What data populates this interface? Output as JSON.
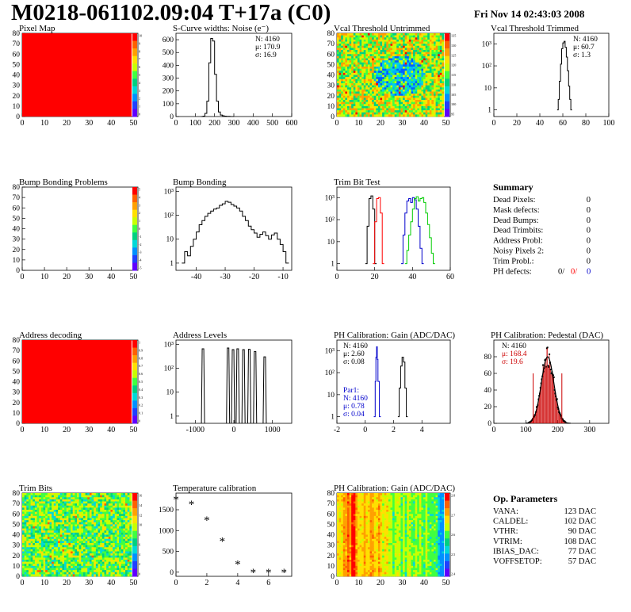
{
  "header": {
    "title": "M0218-061102.09:04 T+17a (C0)",
    "timestamp": "Fri Nov 14 02:43:03 2008"
  },
  "colors": {
    "red": "#ff0000",
    "blue": "#0000cc",
    "green": "#00cc00"
  },
  "chart_data": [
    {
      "id": "pixel-map",
      "type": "heatmap",
      "title": "Pixel Map",
      "xlim": [
        0,
        52
      ],
      "ylim": [
        0,
        80
      ],
      "xticks": [
        0,
        10,
        20,
        30,
        40,
        50
      ],
      "yticks": [
        0,
        10,
        20,
        30,
        40,
        50,
        60,
        70,
        80
      ],
      "palette_ticks": [
        "10",
        "9",
        "8",
        "7",
        "6",
        "5",
        "4",
        "3",
        "2",
        "1",
        "0"
      ],
      "fill": "uniform"
    },
    {
      "id": "scurve",
      "type": "line",
      "title": "S-Curve widths: Noise (e⁻)",
      "xlim": [
        0,
        600
      ],
      "ylim": [
        0,
        650
      ],
      "xticks": [
        0,
        100,
        200,
        300,
        400,
        500,
        600
      ],
      "yticks": [
        0,
        100,
        200,
        300,
        400,
        500,
        600
      ],
      "stats": [
        "N: 4160",
        "μ: 170.9",
        "σ: 16.9"
      ],
      "series": [
        {
          "x": [
            130,
            140,
            150,
            160,
            170,
            180,
            190,
            200,
            210,
            220,
            230,
            240,
            250,
            260,
            270,
            280,
            290
          ],
          "y": [
            0,
            3,
            25,
            120,
            420,
            610,
            590,
            330,
            120,
            35,
            12,
            6,
            3,
            1,
            1,
            0,
            0
          ]
        }
      ]
    },
    {
      "id": "vcal-untrimmed",
      "type": "heatmap",
      "title": "Vcal Threshold Untrimmed",
      "xlim": [
        0,
        52
      ],
      "ylim": [
        0,
        80
      ],
      "xticks": [
        0,
        10,
        20,
        30,
        40,
        50
      ],
      "yticks": [
        0,
        10,
        20,
        30,
        40,
        50,
        60,
        70,
        80
      ],
      "palette_ticks": [
        "135",
        "130",
        "125",
        "120",
        "115",
        "110",
        "105",
        "100",
        "95"
      ],
      "fill": "noisy-yellow"
    },
    {
      "id": "vcal-trimmed",
      "type": "line",
      "title": "Vcal Threshold Trimmed",
      "xlim": [
        0,
        100
      ],
      "log": true,
      "ylim": [
        0.5,
        3000
      ],
      "xticks": [
        0,
        20,
        40,
        60,
        80,
        100
      ],
      "yticks": [
        "1",
        "10",
        "10²",
        "10³"
      ],
      "stats": [
        "N: 4160",
        "μ: 60.7",
        "σ:  1.3"
      ],
      "series": [
        {
          "x": [
            55,
            56,
            57,
            58,
            59,
            60,
            61,
            62,
            63,
            64,
            65,
            66,
            67
          ],
          "y": [
            1,
            3,
            20,
            120,
            600,
            1100,
            1300,
            700,
            250,
            60,
            12,
            3,
            1
          ]
        }
      ]
    },
    {
      "id": "bump-bonding-problems",
      "type": "heatmap",
      "title": "Bump Bonding Problems",
      "xlim": [
        0,
        52
      ],
      "ylim": [
        0,
        80
      ],
      "xticks": [
        0,
        10,
        20,
        30,
        40,
        50
      ],
      "yticks": [
        0,
        10,
        20,
        30,
        40,
        50,
        60,
        70,
        80
      ],
      "palette_ticks": [
        "5",
        "4",
        "3",
        "2",
        "1",
        "0",
        "-1",
        "-2",
        "-3",
        "-4",
        "-5"
      ],
      "fill": "empty"
    },
    {
      "id": "bump-bonding",
      "type": "line",
      "title": "Bump Bonding",
      "xlim": [
        -47,
        -7
      ],
      "log": true,
      "ylim": [
        0.5,
        1500
      ],
      "xticks": [
        -40,
        -30,
        -20,
        -10
      ],
      "yticks": [
        "1",
        "10",
        "10²",
        "10³"
      ],
      "series": [
        {
          "x": [
            -45,
            -44,
            -43,
            -42,
            -41,
            -40,
            -39,
            -38,
            -37,
            -36,
            -35,
            -34,
            -33,
            -32,
            -31,
            -30,
            -29,
            -28,
            -27,
            -26,
            -25,
            -24,
            -23,
            -22,
            -21,
            -20,
            -19,
            -18,
            -17,
            -16,
            -15,
            -14,
            -13,
            -12,
            -11,
            -10,
            -9
          ],
          "y": [
            1,
            3,
            2,
            5,
            10,
            20,
            40,
            60,
            90,
            120,
            150,
            180,
            200,
            260,
            300,
            380,
            350,
            280,
            240,
            200,
            150,
            90,
            60,
            35,
            25,
            18,
            12,
            16,
            20,
            14,
            10,
            15,
            18,
            10,
            6,
            3,
            1
          ]
        }
      ]
    },
    {
      "id": "trim-bit-test",
      "type": "line",
      "title": "Trim Bit Test",
      "xlim": [
        0,
        60
      ],
      "log": true,
      "ylim": [
        0.5,
        3000
      ],
      "xticks": [
        0,
        20,
        40,
        60
      ],
      "yticks": [
        "1",
        "10",
        "10²",
        "10³"
      ],
      "series": [
        {
          "color": "#000000",
          "x": [
            15,
            16,
            17,
            18,
            19,
            20
          ],
          "y": [
            1,
            50,
            900,
            1200,
            300,
            1
          ]
        },
        {
          "color": "#ff0000",
          "x": [
            19,
            20,
            21,
            22,
            23,
            24
          ],
          "y": [
            1,
            80,
            900,
            1000,
            200,
            1
          ]
        },
        {
          "color": "#0000cc",
          "x": [
            34,
            35,
            36,
            37,
            38,
            39,
            40,
            41,
            42,
            43,
            44,
            45
          ],
          "y": [
            1,
            20,
            200,
            700,
            900,
            600,
            1000,
            800,
            300,
            50,
            5,
            1
          ]
        },
        {
          "color": "#00cc00",
          "x": [
            36,
            37,
            38,
            39,
            40,
            41,
            42,
            43,
            44,
            45,
            46,
            47,
            48,
            49,
            50,
            51
          ],
          "y": [
            1,
            4,
            20,
            80,
            300,
            900,
            1100,
            700,
            900,
            1000,
            600,
            200,
            60,
            15,
            3,
            1
          ]
        }
      ]
    },
    {
      "id": "address-decoding",
      "type": "heatmap",
      "title": "Address decoding",
      "xlim": [
        0,
        52
      ],
      "ylim": [
        0,
        80
      ],
      "xticks": [
        0,
        10,
        20,
        30,
        40,
        50
      ],
      "yticks": [
        0,
        10,
        20,
        30,
        40,
        50,
        60,
        70,
        80
      ],
      "palette_ticks": [
        "1",
        "0.9",
        "0.8",
        "0.7",
        "0.6",
        "0.5",
        "0.4",
        "0.3",
        "0.2",
        "0.1",
        "0"
      ],
      "fill": "uniform"
    },
    {
      "id": "address-levels",
      "type": "line",
      "title": "Address Levels",
      "xlim": [
        -1500,
        1500
      ],
      "log": true,
      "ylim": [
        0.5,
        1500
      ],
      "xticks": [
        -1000,
        0,
        1000
      ],
      "yticks": [
        "1",
        "10",
        "10²",
        "10³"
      ],
      "peaks": [
        -800,
        -150,
        -20,
        100,
        250,
        400,
        550,
        800
      ],
      "peak_heights": [
        650,
        700,
        600,
        650,
        600,
        620,
        500,
        300
      ]
    },
    {
      "id": "ph-gain",
      "type": "line",
      "title": "PH Calibration: Gain (ADC/DAC)",
      "xlim": [
        -2,
        6
      ],
      "log": true,
      "ylim": [
        0.5,
        3000
      ],
      "xticks": [
        -2,
        0,
        2,
        4
      ],
      "yticks": [
        "1",
        "10",
        "10²",
        "10³"
      ],
      "stats": [
        "N: 4160",
        "μ: 2.60",
        "σ: 0.08"
      ],
      "stats2": [
        "Par1:",
        "N: 4160",
        "μ: 0.78",
        "σ: 0.04"
      ],
      "series": [
        {
          "color": "#0000cc",
          "x": [
            0.6,
            0.7,
            0.75,
            0.8,
            0.85,
            0.9,
            1.0
          ],
          "y": [
            1,
            40,
            500,
            1500,
            400,
            40,
            1
          ]
        },
        {
          "color": "#000000",
          "x": [
            2.3,
            2.4,
            2.5,
            2.6,
            2.7,
            2.8,
            2.9
          ],
          "y": [
            1,
            20,
            200,
            500,
            300,
            20,
            1
          ]
        }
      ]
    },
    {
      "id": "ph-pedestal",
      "type": "line",
      "title": "PH Calibration: Pedestal (DAC)",
      "xlim": [
        0,
        360
      ],
      "ylim": [
        0,
        100
      ],
      "xticks": [
        0,
        100,
        200,
        300
      ],
      "yticks": [
        0,
        20,
        40,
        60,
        80
      ],
      "stats": [
        "N: 4160",
        "μ: 168.4",
        "σ: 19.6"
      ],
      "fit": {
        "mu": 168.4,
        "sigma": 19.6,
        "peak": 80
      },
      "cut_lines": [
        123,
        213
      ]
    },
    {
      "id": "trim-bits",
      "type": "heatmap",
      "title": "Trim Bits",
      "xlim": [
        0,
        52
      ],
      "ylim": [
        0,
        80
      ],
      "xticks": [
        0,
        10,
        20,
        30,
        40,
        50
      ],
      "yticks": [
        0,
        10,
        20,
        30,
        40,
        50,
        60,
        70,
        80
      ],
      "palette_ticks": [
        "16",
        "14",
        "12",
        "10",
        "8",
        "6",
        "4",
        "2",
        "0"
      ],
      "fill": "noisy-green"
    },
    {
      "id": "temperature-calibration",
      "type": "scatter",
      "title": "Temperature calibration",
      "xlim": [
        0,
        7.5
      ],
      "ylim": [
        -100,
        1900
      ],
      "xticks": [
        0,
        2,
        4,
        6
      ],
      "yticks": [
        0,
        500,
        1000,
        1500
      ],
      "series": [
        {
          "x": [
            0,
            1,
            2,
            3,
            4,
            5,
            6,
            7
          ],
          "y": [
            1750,
            1630,
            1250,
            750,
            200,
            0,
            0,
            0
          ]
        }
      ]
    },
    {
      "id": "ph-gain-map",
      "type": "heatmap",
      "title": "PH Calibration: Gain (ADC/DAC)",
      "xlim": [
        0,
        52
      ],
      "ylim": [
        0,
        80
      ],
      "xticks": [
        0,
        10,
        20,
        30,
        40,
        50
      ],
      "yticks": [
        0,
        10,
        20,
        30,
        40,
        50,
        60,
        70,
        80
      ],
      "palette_ticks": [
        "2.8",
        "2.7",
        "2.6",
        "2.5",
        "2.4"
      ],
      "fill": "column-stripes"
    }
  ],
  "summary": {
    "title": "Summary",
    "rows": [
      {
        "label": "Dead Pixels:",
        "value": "0"
      },
      {
        "label": "Mask defects:",
        "value": "0"
      },
      {
        "label": "Dead Bumps:",
        "value": "0"
      },
      {
        "label": "Dead Trimbits:",
        "value": "0"
      },
      {
        "label": "Address Probl:",
        "value": "0"
      },
      {
        "label": "Noisy Pixels 2:",
        "value": "0"
      },
      {
        "label": "Trim Probl.:",
        "value": "0"
      }
    ],
    "ph_label": "PH defects:",
    "ph_values": [
      "0/",
      "0/",
      "0"
    ]
  },
  "op_parameters": {
    "title": "Op. Parameters",
    "rows": [
      {
        "label": "VANA:",
        "value": "123 DAC"
      },
      {
        "label": "CALDEL:",
        "value": "102 DAC"
      },
      {
        "label": "VTHR:",
        "value": "90 DAC"
      },
      {
        "label": "VTRIM:",
        "value": "108 DAC"
      },
      {
        "label": "IBIAS_DAC:",
        "value": "77 DAC"
      },
      {
        "label": "VOFFSETOP:",
        "value": "57 DAC"
      }
    ]
  }
}
